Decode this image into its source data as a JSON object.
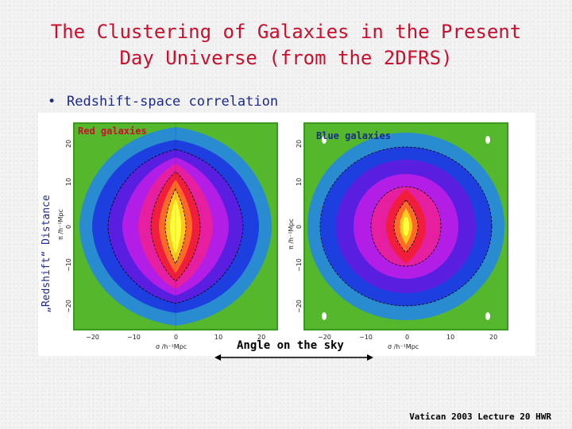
{
  "slide": {
    "title_line1": "The Clustering of Galaxies in the Present",
    "title_line2": "Day Universe (from the 2DFRS)",
    "bullet": "Redshift-space correlation",
    "footer": "Vatican 2003 Lecture 20 HWR"
  },
  "figure": {
    "left_panel_label": "Red galaxies",
    "right_panel_label": "Blue galaxies",
    "y_axis_title": "„Redshift“ Distance",
    "x_axis_title": "Angle on the sky",
    "x_axis_unit_left": "σ   /h⁻¹Mpc",
    "x_axis_unit_right": "σ   /h⁻¹Mpc",
    "y_axis_unit": "π /h⁻¹Mpc",
    "x_ticks": [
      "−20",
      "−10",
      "0",
      "10",
      "20"
    ],
    "y_ticks": [
      "20",
      "10",
      "0",
      "−10",
      "−20"
    ],
    "colors": {
      "title": "#c8102e",
      "bullet": "#1c2a8c",
      "contour_scale": [
        "#3a9a1f",
        "#55b82c",
        "#2a8cd0",
        "#1e3fe0",
        "#5a1ee0",
        "#b21ee6",
        "#e61ea0",
        "#f01e3c",
        "#ff6a28",
        "#ffc81e",
        "#ffff3c"
      ]
    }
  }
}
